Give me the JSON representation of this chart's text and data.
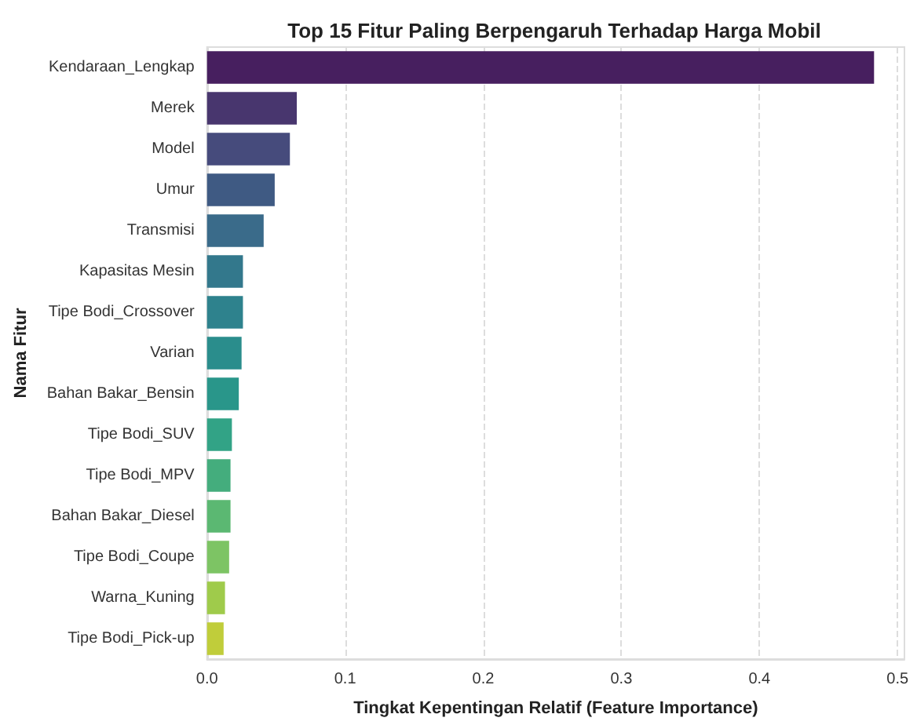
{
  "chart_data": {
    "type": "bar",
    "orientation": "horizontal",
    "title": "Top 15 Fitur Paling Berpengaruh Terhadap Harga Mobil",
    "xlabel": "Tingkat Kepentingan Relatif (Feature Importance)",
    "ylabel": "Nama Fitur",
    "categories": [
      "Kendaraan_Lengkap",
      "Merek",
      "Model",
      "Umur",
      "Transmisi",
      "Kapasitas Mesin",
      "Tipe Bodi_Crossover",
      "Varian",
      "Bahan Bakar_Bensin",
      "Tipe Bodi_SUV",
      "Tipe Bodi_MPV",
      "Bahan Bakar_Diesel",
      "Tipe Bodi_Coupe",
      "Warna_Kuning",
      "Tipe Bodi_Pick-up"
    ],
    "values": [
      0.483,
      0.065,
      0.06,
      0.049,
      0.041,
      0.026,
      0.026,
      0.025,
      0.023,
      0.018,
      0.017,
      0.017,
      0.016,
      0.013,
      0.012
    ],
    "colors": [
      "#471f5f",
      "#48366e",
      "#464b7c",
      "#3f5a83",
      "#3a6b8a",
      "#33788c",
      "#2e828d",
      "#2a8d8c",
      "#29968a",
      "#32a386",
      "#44ad7d",
      "#5bb872",
      "#7dc464",
      "#9fcb4b",
      "#c0cd3a"
    ],
    "xlim": [
      0,
      0.505
    ],
    "xticks": [
      {
        "value": 0,
        "label": "0.0"
      },
      {
        "value": 0.1,
        "label": "0.1"
      },
      {
        "value": 0.2,
        "label": "0.2"
      },
      {
        "value": 0.3,
        "label": "0.3"
      },
      {
        "value": 0.4,
        "label": "0.4"
      },
      {
        "value": 0.5,
        "label": "0.5"
      }
    ],
    "grid": "x"
  }
}
